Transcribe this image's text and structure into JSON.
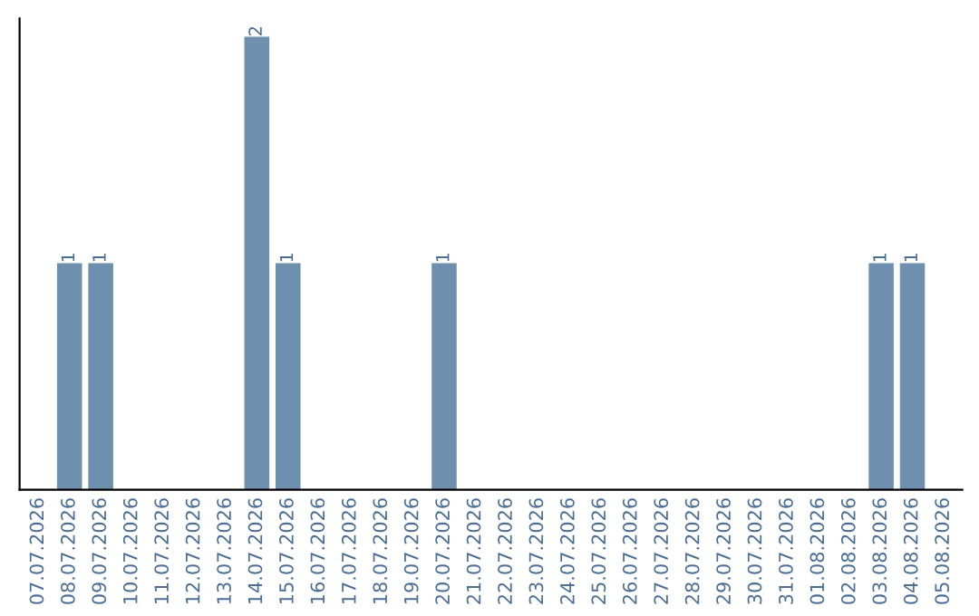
{
  "chart_data": {
    "type": "bar",
    "categories": [
      "07.07.2026",
      "08.07.2026",
      "09.07.2026",
      "10.07.2026",
      "11.07.2026",
      "12.07.2026",
      "13.07.2026",
      "14.07.2026",
      "15.07.2026",
      "16.07.2026",
      "17.07.2026",
      "18.07.2026",
      "19.07.2026",
      "20.07.2026",
      "21.07.2026",
      "22.07.2026",
      "23.07.2026",
      "24.07.2026",
      "25.07.2026",
      "26.07.2026",
      "27.07.2026",
      "28.07.2026",
      "29.07.2026",
      "30.07.2026",
      "31.07.2026",
      "01.08.2026",
      "02.08.2026",
      "03.08.2026",
      "04.08.2026",
      "05.08.2026"
    ],
    "values": [
      0,
      1,
      1,
      0,
      0,
      0,
      0,
      2,
      1,
      0,
      0,
      0,
      0,
      1,
      0,
      0,
      0,
      0,
      0,
      0,
      0,
      0,
      0,
      0,
      0,
      0,
      0,
      1,
      1,
      0
    ],
    "value_labels": [
      null,
      "1",
      "1",
      null,
      null,
      null,
      null,
      "2",
      "1",
      null,
      null,
      null,
      null,
      "1",
      null,
      null,
      null,
      null,
      null,
      null,
      null,
      null,
      null,
      null,
      null,
      null,
      null,
      "1",
      "1",
      null
    ],
    "color": "#6e8fad",
    "tick_labels": "x",
    "grid": false,
    "legend": false
  }
}
